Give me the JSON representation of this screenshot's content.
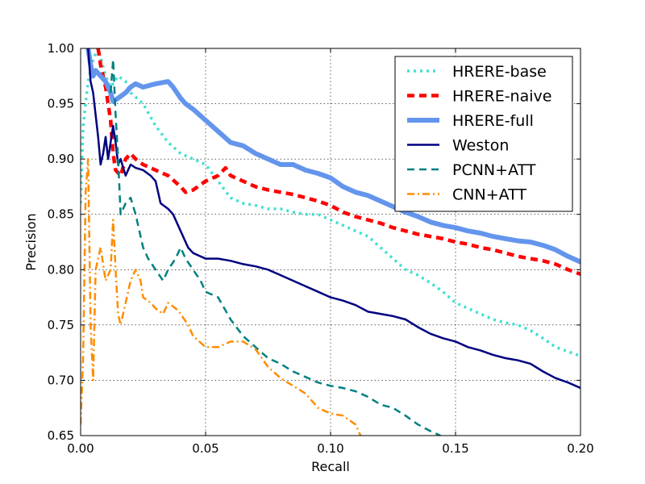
{
  "chart_data": {
    "type": "line",
    "title": "",
    "xlabel": "Recall",
    "ylabel": "Precision",
    "xlim": [
      0,
      0.2
    ],
    "ylim": [
      0.65,
      1.0
    ],
    "xticks": [
      0.0,
      0.05,
      0.1,
      0.15,
      0.2
    ],
    "xtick_labels": [
      "0.00",
      "0.05",
      "0.10",
      "0.15",
      "0.20"
    ],
    "yticks": [
      0.65,
      0.7,
      0.75,
      0.8,
      0.85,
      0.9,
      0.95,
      1.0
    ],
    "ytick_labels": [
      "0.65",
      "0.70",
      "0.75",
      "0.80",
      "0.85",
      "0.90",
      "0.95",
      "1.00"
    ],
    "grid": true,
    "legend_position": "top-right",
    "series": [
      {
        "name": "HRERE-base",
        "color": "#40e0d0",
        "style": "dotted",
        "points": [
          [
            0.0,
            0.86
          ],
          [
            0.001,
            0.93
          ],
          [
            0.003,
            0.97
          ],
          [
            0.005,
            0.99
          ],
          [
            0.007,
            1.0
          ],
          [
            0.01,
            0.975
          ],
          [
            0.012,
            0.965
          ],
          [
            0.015,
            0.975
          ],
          [
            0.018,
            0.97
          ],
          [
            0.02,
            0.96
          ],
          [
            0.025,
            0.95
          ],
          [
            0.03,
            0.93
          ],
          [
            0.035,
            0.915
          ],
          [
            0.04,
            0.905
          ],
          [
            0.045,
            0.9
          ],
          [
            0.05,
            0.895
          ],
          [
            0.055,
            0.88
          ],
          [
            0.06,
            0.865
          ],
          [
            0.065,
            0.86
          ],
          [
            0.07,
            0.858
          ],
          [
            0.075,
            0.855
          ],
          [
            0.08,
            0.855
          ],
          [
            0.085,
            0.852
          ],
          [
            0.09,
            0.85
          ],
          [
            0.095,
            0.85
          ],
          [
            0.1,
            0.845
          ],
          [
            0.105,
            0.84
          ],
          [
            0.11,
            0.835
          ],
          [
            0.115,
            0.83
          ],
          [
            0.12,
            0.82
          ],
          [
            0.125,
            0.81
          ],
          [
            0.13,
            0.8
          ],
          [
            0.135,
            0.795
          ],
          [
            0.14,
            0.788
          ],
          [
            0.145,
            0.78
          ],
          [
            0.15,
            0.77
          ],
          [
            0.155,
            0.765
          ],
          [
            0.16,
            0.76
          ],
          [
            0.165,
            0.755
          ],
          [
            0.17,
            0.752
          ],
          [
            0.175,
            0.75
          ],
          [
            0.18,
            0.745
          ],
          [
            0.185,
            0.738
          ],
          [
            0.19,
            0.73
          ],
          [
            0.195,
            0.726
          ],
          [
            0.2,
            0.722
          ]
        ]
      },
      {
        "name": "HRERE-naive",
        "color": "#ff0000",
        "style": "dashed",
        "points": [
          [
            0.007,
            1.0
          ],
          [
            0.008,
            0.985
          ],
          [
            0.01,
            0.965
          ],
          [
            0.012,
            0.935
          ],
          [
            0.013,
            0.905
          ],
          [
            0.014,
            0.89
          ],
          [
            0.016,
            0.885
          ],
          [
            0.018,
            0.9
          ],
          [
            0.02,
            0.905
          ],
          [
            0.022,
            0.9
          ],
          [
            0.025,
            0.895
          ],
          [
            0.03,
            0.89
          ],
          [
            0.035,
            0.885
          ],
          [
            0.04,
            0.875
          ],
          [
            0.042,
            0.87
          ],
          [
            0.045,
            0.872
          ],
          [
            0.05,
            0.88
          ],
          [
            0.055,
            0.885
          ],
          [
            0.058,
            0.892
          ],
          [
            0.06,
            0.885
          ],
          [
            0.065,
            0.88
          ],
          [
            0.07,
            0.875
          ],
          [
            0.075,
            0.872
          ],
          [
            0.08,
            0.87
          ],
          [
            0.085,
            0.868
          ],
          [
            0.09,
            0.865
          ],
          [
            0.095,
            0.862
          ],
          [
            0.1,
            0.858
          ],
          [
            0.105,
            0.852
          ],
          [
            0.11,
            0.848
          ],
          [
            0.115,
            0.845
          ],
          [
            0.12,
            0.842
          ],
          [
            0.125,
            0.838
          ],
          [
            0.13,
            0.835
          ],
          [
            0.135,
            0.832
          ],
          [
            0.14,
            0.83
          ],
          [
            0.145,
            0.828
          ],
          [
            0.15,
            0.825
          ],
          [
            0.155,
            0.823
          ],
          [
            0.16,
            0.82
          ],
          [
            0.165,
            0.818
          ],
          [
            0.17,
            0.815
          ],
          [
            0.175,
            0.812
          ],
          [
            0.18,
            0.81
          ],
          [
            0.185,
            0.808
          ],
          [
            0.19,
            0.805
          ],
          [
            0.195,
            0.8
          ],
          [
            0.2,
            0.796
          ]
        ]
      },
      {
        "name": "HRERE-full",
        "color": "#6495ed",
        "style": "solid-thick",
        "points": [
          [
            0.003,
            1.0
          ],
          [
            0.004,
            0.985
          ],
          [
            0.005,
            0.975
          ],
          [
            0.006,
            0.98
          ],
          [
            0.008,
            0.975
          ],
          [
            0.01,
            0.97
          ],
          [
            0.012,
            0.96
          ],
          [
            0.013,
            0.952
          ],
          [
            0.015,
            0.955
          ],
          [
            0.018,
            0.96
          ],
          [
            0.02,
            0.965
          ],
          [
            0.022,
            0.968
          ],
          [
            0.025,
            0.965
          ],
          [
            0.03,
            0.968
          ],
          [
            0.035,
            0.97
          ],
          [
            0.037,
            0.965
          ],
          [
            0.04,
            0.955
          ],
          [
            0.042,
            0.95
          ],
          [
            0.045,
            0.945
          ],
          [
            0.05,
            0.935
          ],
          [
            0.055,
            0.925
          ],
          [
            0.06,
            0.915
          ],
          [
            0.065,
            0.912
          ],
          [
            0.07,
            0.905
          ],
          [
            0.075,
            0.9
          ],
          [
            0.08,
            0.895
          ],
          [
            0.085,
            0.895
          ],
          [
            0.09,
            0.89
          ],
          [
            0.095,
            0.887
          ],
          [
            0.1,
            0.883
          ],
          [
            0.105,
            0.875
          ],
          [
            0.11,
            0.87
          ],
          [
            0.115,
            0.867
          ],
          [
            0.12,
            0.862
          ],
          [
            0.125,
            0.857
          ],
          [
            0.13,
            0.852
          ],
          [
            0.135,
            0.848
          ],
          [
            0.14,
            0.843
          ],
          [
            0.145,
            0.84
          ],
          [
            0.15,
            0.838
          ],
          [
            0.155,
            0.835
          ],
          [
            0.16,
            0.833
          ],
          [
            0.165,
            0.83
          ],
          [
            0.17,
            0.828
          ],
          [
            0.175,
            0.826
          ],
          [
            0.18,
            0.825
          ],
          [
            0.185,
            0.822
          ],
          [
            0.19,
            0.818
          ],
          [
            0.195,
            0.812
          ],
          [
            0.2,
            0.807
          ]
        ]
      },
      {
        "name": "Weston",
        "color": "#000080",
        "style": "solid",
        "points": [
          [
            0.003,
            1.0
          ],
          [
            0.004,
            0.97
          ],
          [
            0.005,
            0.96
          ],
          [
            0.006,
            0.94
          ],
          [
            0.007,
            0.92
          ],
          [
            0.008,
            0.895
          ],
          [
            0.009,
            0.905
          ],
          [
            0.01,
            0.92
          ],
          [
            0.011,
            0.9
          ],
          [
            0.012,
            0.915
          ],
          [
            0.013,
            0.93
          ],
          [
            0.014,
            0.915
          ],
          [
            0.015,
            0.895
          ],
          [
            0.016,
            0.9
          ],
          [
            0.018,
            0.885
          ],
          [
            0.02,
            0.895
          ],
          [
            0.022,
            0.892
          ],
          [
            0.025,
            0.89
          ],
          [
            0.028,
            0.885
          ],
          [
            0.03,
            0.88
          ],
          [
            0.032,
            0.86
          ],
          [
            0.035,
            0.855
          ],
          [
            0.037,
            0.85
          ],
          [
            0.04,
            0.835
          ],
          [
            0.043,
            0.82
          ],
          [
            0.045,
            0.815
          ],
          [
            0.05,
            0.81
          ],
          [
            0.055,
            0.81
          ],
          [
            0.06,
            0.808
          ],
          [
            0.065,
            0.805
          ],
          [
            0.07,
            0.803
          ],
          [
            0.075,
            0.8
          ],
          [
            0.08,
            0.795
          ],
          [
            0.085,
            0.79
          ],
          [
            0.09,
            0.785
          ],
          [
            0.095,
            0.78
          ],
          [
            0.1,
            0.775
          ],
          [
            0.105,
            0.772
          ],
          [
            0.11,
            0.768
          ],
          [
            0.115,
            0.762
          ],
          [
            0.12,
            0.76
          ],
          [
            0.125,
            0.758
          ],
          [
            0.13,
            0.755
          ],
          [
            0.135,
            0.748
          ],
          [
            0.14,
            0.742
          ],
          [
            0.145,
            0.738
          ],
          [
            0.15,
            0.735
          ],
          [
            0.155,
            0.73
          ],
          [
            0.16,
            0.727
          ],
          [
            0.165,
            0.723
          ],
          [
            0.17,
            0.72
          ],
          [
            0.175,
            0.718
          ],
          [
            0.18,
            0.715
          ],
          [
            0.185,
            0.708
          ],
          [
            0.19,
            0.702
          ],
          [
            0.195,
            0.698
          ],
          [
            0.2,
            0.693
          ]
        ]
      },
      {
        "name": "PCNN+ATT",
        "color": "#008080",
        "style": "dashed",
        "points": [
          [
            0.012,
            0.96
          ],
          [
            0.013,
            0.99
          ],
          [
            0.014,
            0.94
          ],
          [
            0.015,
            0.9
          ],
          [
            0.016,
            0.85
          ],
          [
            0.018,
            0.86
          ],
          [
            0.02,
            0.865
          ],
          [
            0.022,
            0.85
          ],
          [
            0.025,
            0.82
          ],
          [
            0.027,
            0.81
          ],
          [
            0.03,
            0.8
          ],
          [
            0.033,
            0.79
          ],
          [
            0.035,
            0.8
          ],
          [
            0.038,
            0.81
          ],
          [
            0.04,
            0.82
          ],
          [
            0.042,
            0.81
          ],
          [
            0.045,
            0.8
          ],
          [
            0.048,
            0.79
          ],
          [
            0.05,
            0.78
          ],
          [
            0.055,
            0.775
          ],
          [
            0.06,
            0.755
          ],
          [
            0.065,
            0.74
          ],
          [
            0.07,
            0.73
          ],
          [
            0.075,
            0.72
          ],
          [
            0.08,
            0.715
          ],
          [
            0.085,
            0.708
          ],
          [
            0.09,
            0.703
          ],
          [
            0.095,
            0.698
          ],
          [
            0.1,
            0.695
          ],
          [
            0.105,
            0.693
          ],
          [
            0.11,
            0.69
          ],
          [
            0.115,
            0.685
          ],
          [
            0.12,
            0.678
          ],
          [
            0.125,
            0.675
          ],
          [
            0.13,
            0.668
          ],
          [
            0.135,
            0.66
          ],
          [
            0.14,
            0.654
          ],
          [
            0.144,
            0.65
          ]
        ]
      },
      {
        "name": "CNN+ATT",
        "color": "#ff8c00",
        "style": "dashdot",
        "points": [
          [
            0.0,
            0.66
          ],
          [
            0.001,
            0.72
          ],
          [
            0.002,
            0.87
          ],
          [
            0.003,
            0.9
          ],
          [
            0.004,
            0.75
          ],
          [
            0.005,
            0.7
          ],
          [
            0.006,
            0.8
          ],
          [
            0.008,
            0.82
          ],
          [
            0.01,
            0.79
          ],
          [
            0.012,
            0.8
          ],
          [
            0.013,
            0.845
          ],
          [
            0.014,
            0.8
          ],
          [
            0.015,
            0.76
          ],
          [
            0.016,
            0.75
          ],
          [
            0.018,
            0.77
          ],
          [
            0.02,
            0.79
          ],
          [
            0.022,
            0.8
          ],
          [
            0.024,
            0.79
          ],
          [
            0.025,
            0.775
          ],
          [
            0.028,
            0.77
          ],
          [
            0.03,
            0.765
          ],
          [
            0.033,
            0.76
          ],
          [
            0.035,
            0.77
          ],
          [
            0.038,
            0.765
          ],
          [
            0.04,
            0.76
          ],
          [
            0.043,
            0.75
          ],
          [
            0.045,
            0.74
          ],
          [
            0.05,
            0.73
          ],
          [
            0.055,
            0.73
          ],
          [
            0.06,
            0.735
          ],
          [
            0.065,
            0.735
          ],
          [
            0.07,
            0.728
          ],
          [
            0.075,
            0.712
          ],
          [
            0.08,
            0.702
          ],
          [
            0.085,
            0.695
          ],
          [
            0.09,
            0.688
          ],
          [
            0.095,
            0.675
          ],
          [
            0.1,
            0.67
          ],
          [
            0.105,
            0.668
          ],
          [
            0.11,
            0.66
          ],
          [
            0.112,
            0.65
          ]
        ]
      }
    ]
  }
}
